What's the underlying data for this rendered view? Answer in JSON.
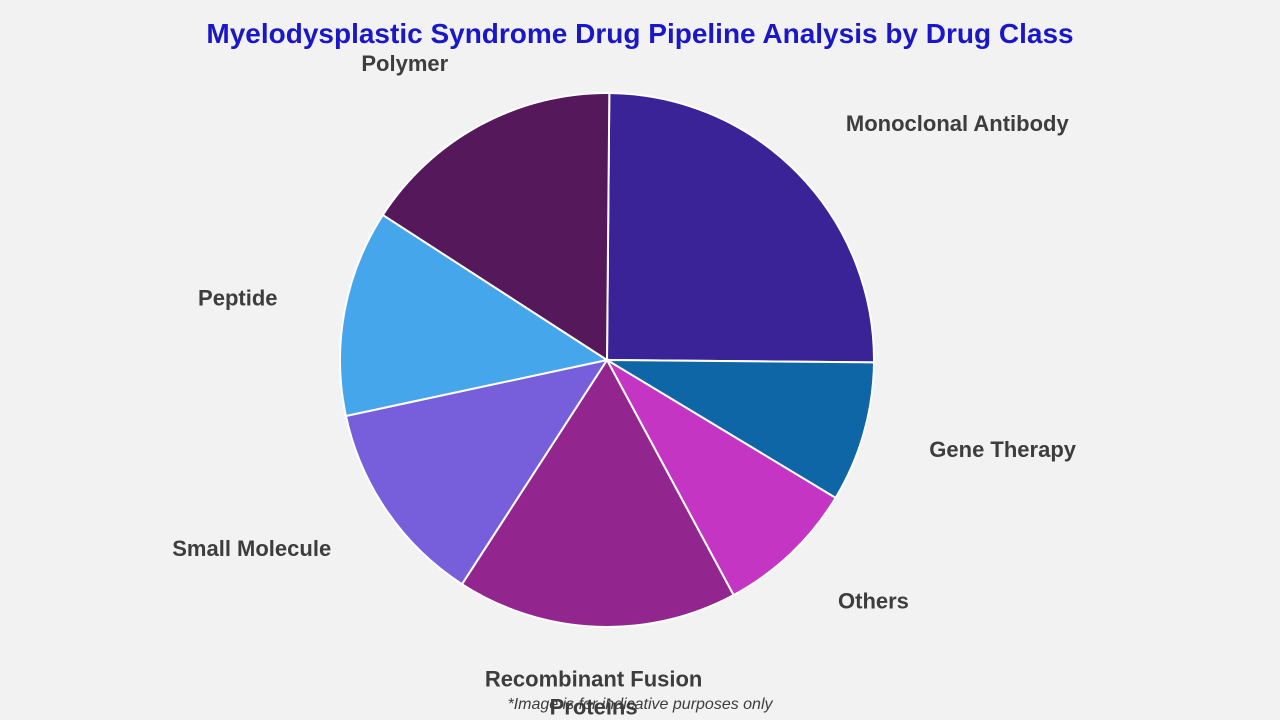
{
  "chart_data": {
    "type": "pie",
    "title": "Myelodysplastic Syndrome Drug Pipeline Analysis by Drug Class",
    "footnote": "*Image is for indicative purposes only",
    "start_angle_deg": 0.5,
    "direction": "clockwise",
    "legend": "none",
    "slices": [
      {
        "label": "Monoclonal Antibody",
        "label_lines": [
          "Monoclonal Antibody"
        ],
        "value": 25,
        "color": "#3a2396"
      },
      {
        "label": "Gene Therapy",
        "label_lines": [
          "Gene Therapy"
        ],
        "value": 8.5,
        "color": "#0f66a6"
      },
      {
        "label": "Others",
        "label_lines": [
          "Others"
        ],
        "value": 8.5,
        "color": "#c535c3"
      },
      {
        "label": "Recombinant Fusion Proteins",
        "label_lines": [
          "Recombinant Fusion",
          "Proteins"
        ],
        "value": 17,
        "color": "#92268e"
      },
      {
        "label": "Small Molecule",
        "label_lines": [
          "Small Molecule"
        ],
        "value": 12.5,
        "color": "#775fdb"
      },
      {
        "label": "Peptide",
        "label_lines": [
          "Peptide"
        ],
        "value": 12.5,
        "color": "#46a6ec"
      },
      {
        "label": "Polymer",
        "label_lines": [
          "Polymer"
        ],
        "value": 16,
        "color": "#55185a"
      }
    ]
  }
}
